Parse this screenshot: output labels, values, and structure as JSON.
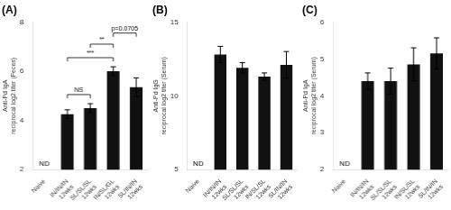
{
  "chart_data": [
    {
      "type": "bar",
      "title": "(A)",
      "ylabel": "Anti-Pd IgA\nreciprocal log2 titer (Feces)",
      "categories": [
        "Naive",
        "IN/IN/IN\n12wks",
        "SL/SL/SL\n12wks",
        "IN/SL/GL\n12wks",
        "SL/IN/IN\n12wks"
      ],
      "values": [
        null,
        4.25,
        4.5,
        6.0,
        5.35
      ],
      "errors": [
        null,
        0.18,
        0.18,
        0.18,
        0.38
      ],
      "color": "#111111",
      "ylim": [
        2,
        8
      ],
      "yticks": [
        2,
        4,
        6,
        8
      ],
      "grid": false,
      "annotations": [
        {
          "text": "ND",
          "category": "Naive"
        }
      ],
      "significance": [
        {
          "x1": "IN/IN/IN\n12wks",
          "x2": "SL/SL/SL\n12wks",
          "y": 5.05,
          "label": "NS"
        },
        {
          "x1": "IN/IN/IN\n12wks",
          "x2": "IN/SL/GL\n12wks",
          "y": 6.55,
          "label": "***"
        },
        {
          "x1": "SL/SL/SL\n12wks",
          "x2": "IN/SL/GL\n12wks",
          "y": 7.1,
          "label": "**"
        },
        {
          "x1": "IN/SL/GL\n12wks",
          "x2": "SL/IN/IN\n12wks",
          "y": 7.55,
          "label": "p=0.0705"
        }
      ]
    },
    {
      "type": "bar",
      "title": "(B)",
      "ylabel": "Anti-Pd IgG\nreciprocal log2 titer (Serum)",
      "categories": [
        "Naive",
        "IN/IN/IN\n12wks",
        "SL/SL/SL\n12wks",
        "IN/SL/SL\n12wks",
        "SL/IN/IN\n12wks"
      ],
      "values": [
        null,
        12.8,
        11.9,
        11.3,
        12.1
      ],
      "errors": [
        null,
        0.55,
        0.35,
        0.25,
        0.9
      ],
      "color": "#111111",
      "ylim": [
        5,
        15
      ],
      "yticks": [
        5,
        10,
        15
      ],
      "grid": false,
      "annotations": [
        {
          "text": "ND",
          "category": "Naive"
        }
      ]
    },
    {
      "type": "bar",
      "title": "(C)",
      "ylabel": "Anti-Pd IgA\nreciprocal log2 titer (Serum)",
      "categories": [
        "Naive",
        "IN/IN/IN\n12wks",
        "SL/SL/SL\n12wks",
        "IN/SL/SL\n12wks",
        "SL/IN/IN\n12wks"
      ],
      "values": [
        null,
        4.4,
        4.4,
        4.85,
        5.15
      ],
      "errors": [
        null,
        0.22,
        0.35,
        0.45,
        0.42
      ],
      "color": "#111111",
      "ylim": [
        2,
        6
      ],
      "yticks": [
        2,
        3,
        4,
        5,
        6
      ],
      "grid": false,
      "annotations": [
        {
          "text": "ND",
          "category": "Naive"
        }
      ]
    }
  ]
}
